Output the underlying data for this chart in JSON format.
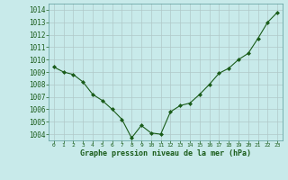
{
  "x": [
    0,
    1,
    2,
    3,
    4,
    5,
    6,
    7,
    8,
    9,
    10,
    11,
    12,
    13,
    14,
    15,
    16,
    17,
    18,
    19,
    20,
    21,
    22,
    23
  ],
  "y": [
    1009.4,
    1009.0,
    1008.8,
    1008.2,
    1007.2,
    1006.7,
    1006.0,
    1005.2,
    1003.7,
    1004.7,
    1004.1,
    1004.0,
    1005.8,
    1006.3,
    1006.5,
    1007.2,
    1008.0,
    1008.9,
    1009.3,
    1010.0,
    1010.5,
    1011.7,
    1013.0,
    1013.8
  ],
  "line_color": "#1a5c1a",
  "marker": "D",
  "marker_size": 2.0,
  "background_color": "#c8eaea",
  "grid_color": "#b0c8c8",
  "xlabel": "Graphe pression niveau de la mer (hPa)",
  "xlabel_color": "#1a5c1a",
  "tick_color": "#1a5c1a",
  "ylim": [
    1003.5,
    1014.5
  ],
  "xlim": [
    -0.5,
    23.5
  ],
  "yticks": [
    1004,
    1005,
    1006,
    1007,
    1008,
    1009,
    1010,
    1011,
    1012,
    1013,
    1014
  ],
  "xticks": [
    0,
    1,
    2,
    3,
    4,
    5,
    6,
    7,
    8,
    9,
    10,
    11,
    12,
    13,
    14,
    15,
    16,
    17,
    18,
    19,
    20,
    21,
    22,
    23
  ]
}
